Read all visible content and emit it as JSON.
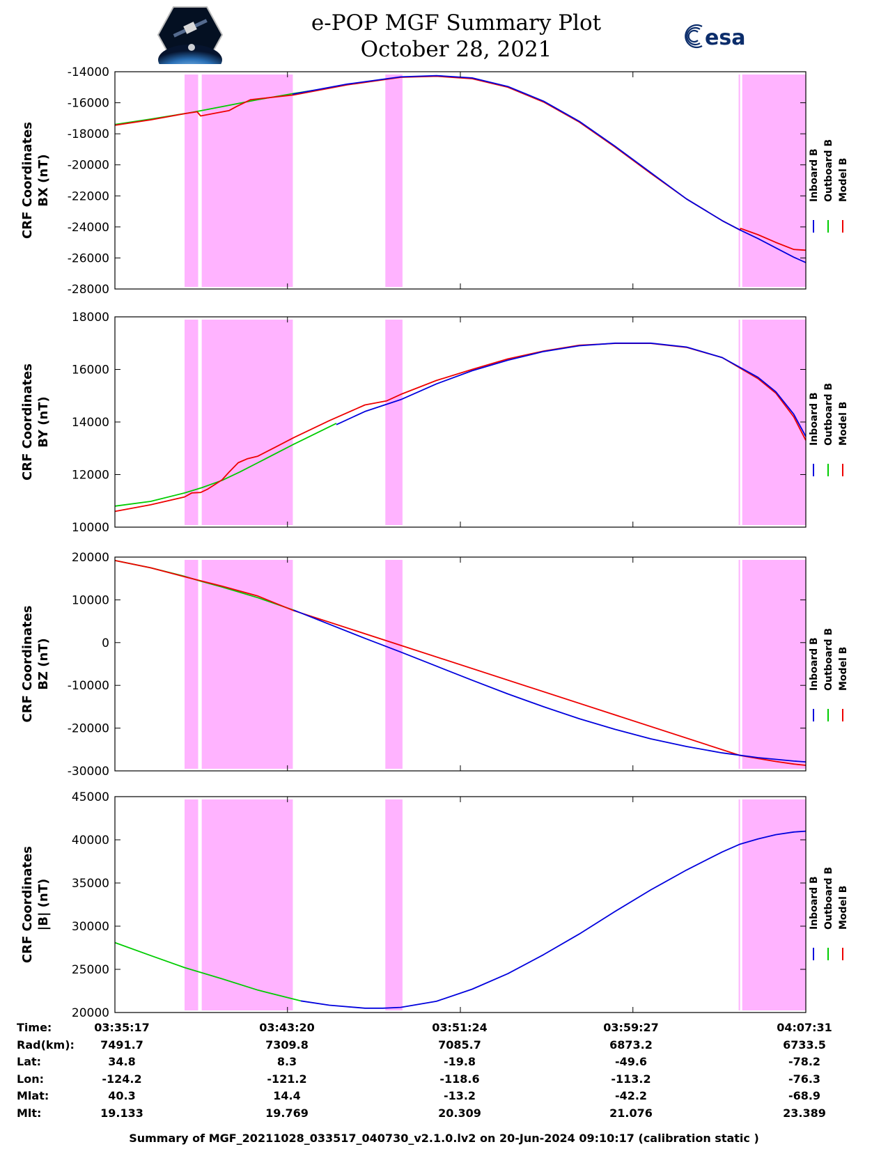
{
  "title": "e-POP MGF Summary Plot",
  "subtitle": "October 28, 2021",
  "logos": {
    "left": "cassiope-logo",
    "right": "esa-logo",
    "right_text": "esa"
  },
  "colors": {
    "inboard": "#0000dd",
    "outboard": "#00cc00",
    "model": "#ee0000",
    "shade": "#ffb3ff"
  },
  "legend": [
    "Inboard B",
    "Outboard B",
    "Model B"
  ],
  "x_ticks": [
    0,
    483,
    967,
    1450,
    1934
  ],
  "shaded_intervals": [
    [
      195,
      233
    ],
    [
      243,
      498
    ],
    [
      757,
      805
    ],
    [
      1746,
      1750
    ],
    [
      1756,
      1934
    ]
  ],
  "chart_data": [
    {
      "type": "line",
      "ylabel": [
        "CRF Coordinates",
        "BX (nT)"
      ],
      "ylim": [
        -28000,
        -14000
      ],
      "yticks": [
        -14000,
        -16000,
        -18000,
        -20000,
        -22000,
        -24000,
        -26000,
        -28000
      ],
      "series": [
        {
          "name": "Inboard B",
          "x": [
            497,
            650,
            800,
            900,
            1000,
            1100,
            1200,
            1300,
            1400,
            1500,
            1600,
            1700,
            1750,
            1800,
            1850,
            1900,
            1934
          ],
          "y": [
            -15450,
            -14800,
            -14330,
            -14250,
            -14400,
            -14950,
            -15900,
            -17200,
            -18800,
            -20500,
            -22200,
            -23600,
            -24200,
            -24750,
            -25350,
            -25950,
            -26300
          ]
        },
        {
          "name": "Outboard B",
          "x": [
            0,
            100,
            195,
            243,
            300,
            400,
            500,
            570
          ],
          "y": [
            -17400,
            -17050,
            -16700,
            -16500,
            -16250,
            -15800,
            -15400,
            -15150
          ]
        },
        {
          "name": "Model B",
          "x": [
            0,
            100,
            195,
            230,
            240,
            320,
            340,
            380,
            420,
            500,
            650,
            800,
            900,
            1000,
            1100,
            1200,
            1300,
            1400,
            1500,
            1600,
            1700,
            1750,
            1752,
            1800,
            1850,
            1900,
            1934
          ],
          "y": [
            -17450,
            -17100,
            -16700,
            -16580,
            -16850,
            -16500,
            -16250,
            -15800,
            -15700,
            -15500,
            -14850,
            -14360,
            -14290,
            -14450,
            -15000,
            -15950,
            -17250,
            -18850,
            -20550,
            -22200,
            -23600,
            -24200,
            -24100,
            -24500,
            -25000,
            -25450,
            -25500
          ]
        }
      ]
    },
    {
      "type": "line",
      "ylabel": [
        "CRF Coordinates",
        "BY (nT)"
      ],
      "ylim": [
        10000,
        18000
      ],
      "yticks": [
        18000,
        16000,
        14000,
        12000,
        10000
      ],
      "series": [
        {
          "name": "Inboard B",
          "x": [
            620,
            700,
            800,
            900,
            1000,
            1100,
            1200,
            1300,
            1400,
            1500,
            1600,
            1700,
            1800,
            1850,
            1900,
            1934
          ],
          "y": [
            13900,
            14400,
            14850,
            15450,
            15950,
            16350,
            16680,
            16900,
            17000,
            17000,
            16850,
            16450,
            15700,
            15150,
            14300,
            13450
          ]
        },
        {
          "name": "Outboard B",
          "x": [
            0,
            100,
            195,
            243,
            300,
            350,
            400,
            500,
            620
          ],
          "y": [
            10800,
            10980,
            11300,
            11500,
            11780,
            12100,
            12450,
            13150,
            13950
          ]
        },
        {
          "name": "Model B",
          "x": [
            0,
            100,
            195,
            215,
            240,
            260,
            280,
            300,
            320,
            345,
            370,
            400,
            450,
            500,
            600,
            700,
            760,
            800,
            900,
            1000,
            1100,
            1200,
            1300,
            1400,
            1500,
            1600,
            1700,
            1800,
            1850,
            1900,
            1934
          ],
          "y": [
            10600,
            10850,
            11150,
            11300,
            11320,
            11450,
            11620,
            11800,
            12100,
            12450,
            12600,
            12700,
            13050,
            13400,
            14050,
            14650,
            14800,
            15050,
            15580,
            16000,
            16400,
            16700,
            16920,
            16990,
            16990,
            16840,
            16450,
            15650,
            15100,
            14200,
            13300
          ]
        }
      ]
    },
    {
      "type": "line",
      "ylabel": [
        "CRF Coordinates",
        "BZ (nT)"
      ],
      "ylim": [
        -30000,
        20000
      ],
      "yticks": [
        20000,
        10000,
        0,
        -10000,
        -20000,
        -30000
      ],
      "series": [
        {
          "name": "Inboard B",
          "x": [
            500,
            600,
            700,
            800,
            900,
            1000,
            1100,
            1200,
            1300,
            1400,
            1500,
            1600,
            1700,
            1800,
            1900,
            1934
          ],
          "y": [
            7600,
            4300,
            1000,
            -2200,
            -5500,
            -8800,
            -12000,
            -15000,
            -17800,
            -20300,
            -22500,
            -24300,
            -25800,
            -26900,
            -27700,
            -27900
          ]
        },
        {
          "name": "Outboard B",
          "x": [
            0,
            100,
            195,
            243,
            300,
            400,
            500
          ],
          "y": [
            19200,
            17500,
            15500,
            14300,
            13000,
            10500,
            7600
          ]
        },
        {
          "name": "Model B",
          "x": [
            0,
            100,
            195,
            243,
            300,
            400,
            500,
            1750,
            1800,
            1850,
            1900,
            1934
          ],
          "y": [
            19200,
            17500,
            15400,
            14400,
            13200,
            10900,
            7500,
            -26400,
            -27100,
            -27800,
            -28400,
            -28700
          ]
        }
      ]
    },
    {
      "type": "line",
      "ylabel": [
        "CRF Coordinates",
        "|B| (nT)"
      ],
      "ylim": [
        20000,
        45000
      ],
      "yticks": [
        45000,
        40000,
        35000,
        30000,
        25000,
        20000
      ],
      "series": [
        {
          "name": "Inboard B",
          "x": [
            520,
            600,
            700,
            750,
            800,
            900,
            1000,
            1100,
            1200,
            1300,
            1400,
            1500,
            1600,
            1700,
            1750,
            1800,
            1850,
            1900,
            1934
          ],
          "y": [
            21350,
            20850,
            20500,
            20500,
            20600,
            21300,
            22700,
            24500,
            26700,
            29100,
            31700,
            34200,
            36500,
            38600,
            39500,
            40100,
            40600,
            40900,
            41000
          ]
        },
        {
          "name": "Outboard B",
          "x": [
            0,
            100,
            195,
            300,
            400,
            520
          ],
          "y": [
            28100,
            26600,
            25200,
            23900,
            22600,
            21350
          ]
        },
        {
          "name": "Model B",
          "x": [],
          "y": []
        }
      ]
    }
  ],
  "info": {
    "labels": [
      "Time:",
      "Rad(km):",
      "Lat:",
      "Lon:",
      "Mlat:",
      "Mlt:"
    ],
    "columns": [
      [
        "03:35:17",
        "7491.7",
        "34.8",
        "-124.2",
        "40.3",
        "19.133"
      ],
      [
        "03:43:20",
        "7309.8",
        "8.3",
        "-121.2",
        "14.4",
        "19.769"
      ],
      [
        "03:51:24",
        "7085.7",
        "-19.8",
        "-118.6",
        "-13.2",
        "20.309"
      ],
      [
        "03:59:27",
        "6873.2",
        "-49.6",
        "-113.2",
        "-42.2",
        "21.076"
      ],
      [
        "04:07:31",
        "6733.5",
        "-78.2",
        "-76.3",
        "-68.9",
        "23.389"
      ]
    ]
  },
  "footer": "Summary of MGF_20211028_033517_040730_v2.1.0.lv2 on 20-Jun-2024 09:10:17 (calibration static )"
}
